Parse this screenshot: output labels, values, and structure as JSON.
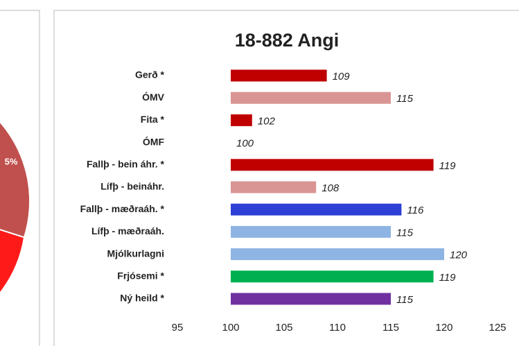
{
  "pie_fragment": {
    "label": "5%"
  },
  "chart_data": {
    "type": "bar",
    "orientation": "horizontal",
    "title": "18-882 Angi",
    "categories": [
      "Gerð *",
      "ÓMV",
      "Fita *",
      "ÓMF",
      "Fallþ - bein áhr. *",
      "Lífþ - beináhr.",
      "Fallþ - mæðraáh. *",
      "Lífþ - mæðraáh.",
      "Mjólkurlagni",
      "Frjósemi *",
      "Ný heild *"
    ],
    "values": [
      109,
      115,
      102,
      100,
      119,
      108,
      116,
      115,
      120,
      119,
      115
    ],
    "colors": [
      "#c00000",
      "#d99594",
      "#c00000",
      "#c00000",
      "#c00000",
      "#d99594",
      "#2e3fd6",
      "#8eb4e3",
      "#8eb4e3",
      "#00b050",
      "#7030a0"
    ],
    "bar_base": 100,
    "xlim": [
      95,
      125
    ],
    "xticks": [
      95,
      100,
      105,
      110,
      115,
      120,
      125
    ],
    "grid": false
  }
}
